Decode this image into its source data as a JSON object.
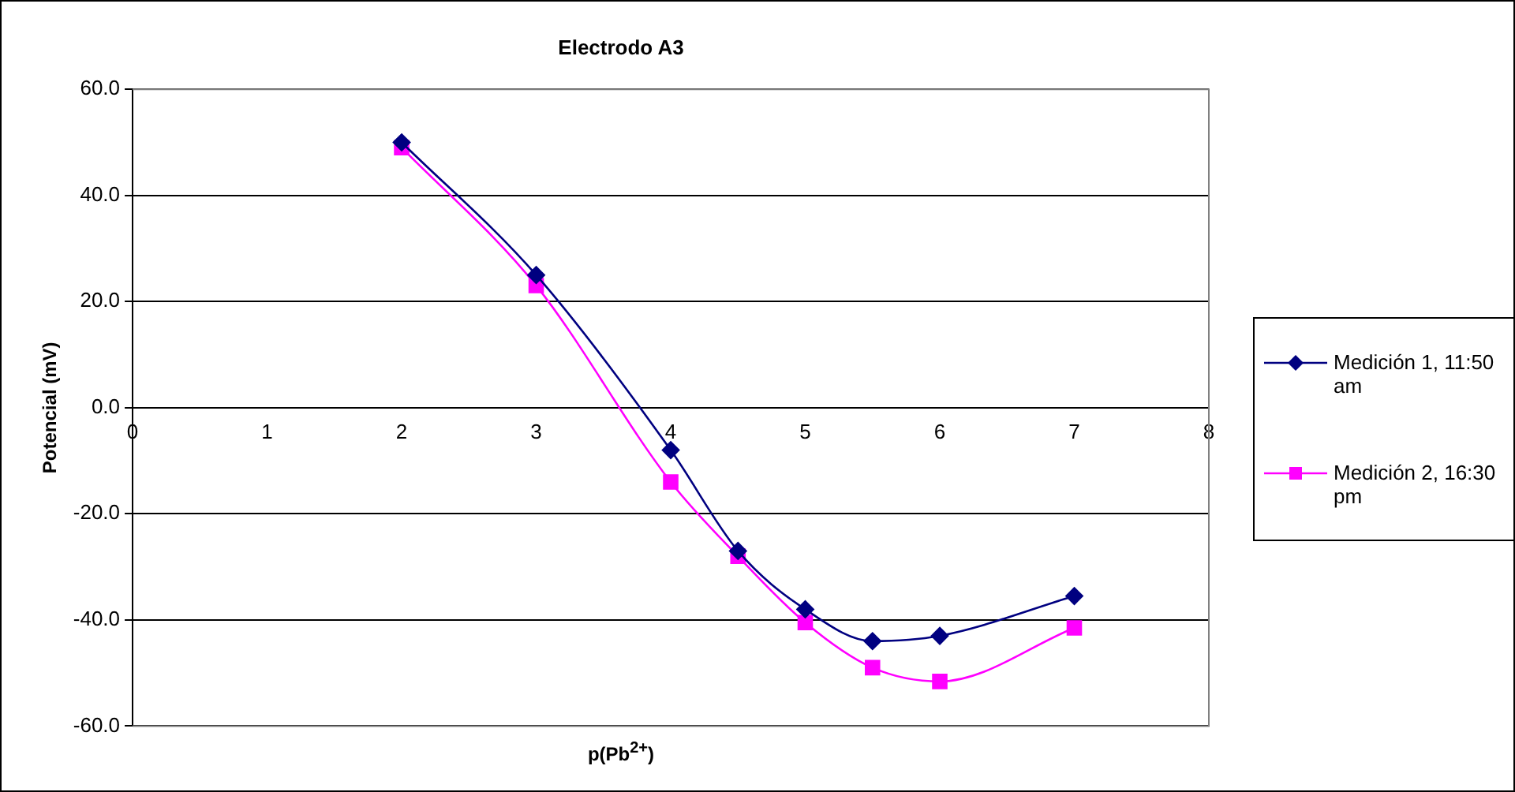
{
  "chart_data": {
    "type": "line",
    "title": "Electrodo A3",
    "xlabel": "p(Pb$^{2+}$)",
    "ylabel": "Potencial (mV)",
    "xlim": [
      0,
      8
    ],
    "xticks": [
      0,
      1,
      2,
      3,
      4,
      5,
      6,
      7,
      8
    ],
    "ylim": [
      -60,
      60
    ],
    "yticks": [
      {
        "value": -60,
        "label": "-60.0"
      },
      {
        "value": -40,
        "label": "-40.0"
      },
      {
        "value": -20,
        "label": "-20.0"
      },
      {
        "value": 0,
        "label": "0.0"
      },
      {
        "value": 20,
        "label": "20.0"
      },
      {
        "value": 40,
        "label": "40.0"
      },
      {
        "value": 60,
        "label": "60.0"
      }
    ],
    "grid": "y",
    "legend": "right",
    "series": [
      {
        "name": "Medición 1, 11:50 am",
        "color": "#000080",
        "marker": "diamond",
        "x": [
          2,
          3,
          4,
          4.5,
          5,
          5.5,
          6,
          7
        ],
        "values": [
          50,
          25,
          -8,
          -27,
          -38,
          -44,
          -43,
          -35.5
        ]
      },
      {
        "name": "Medición 2, 16:30 pm",
        "color": "#ff00ff",
        "marker": "square",
        "x": [
          2,
          3,
          4,
          4.5,
          5,
          5.5,
          6,
          7
        ],
        "values": [
          49,
          23,
          -14,
          -28,
          -40.5,
          -49,
          -51.6,
          -41.5
        ]
      }
    ]
  }
}
